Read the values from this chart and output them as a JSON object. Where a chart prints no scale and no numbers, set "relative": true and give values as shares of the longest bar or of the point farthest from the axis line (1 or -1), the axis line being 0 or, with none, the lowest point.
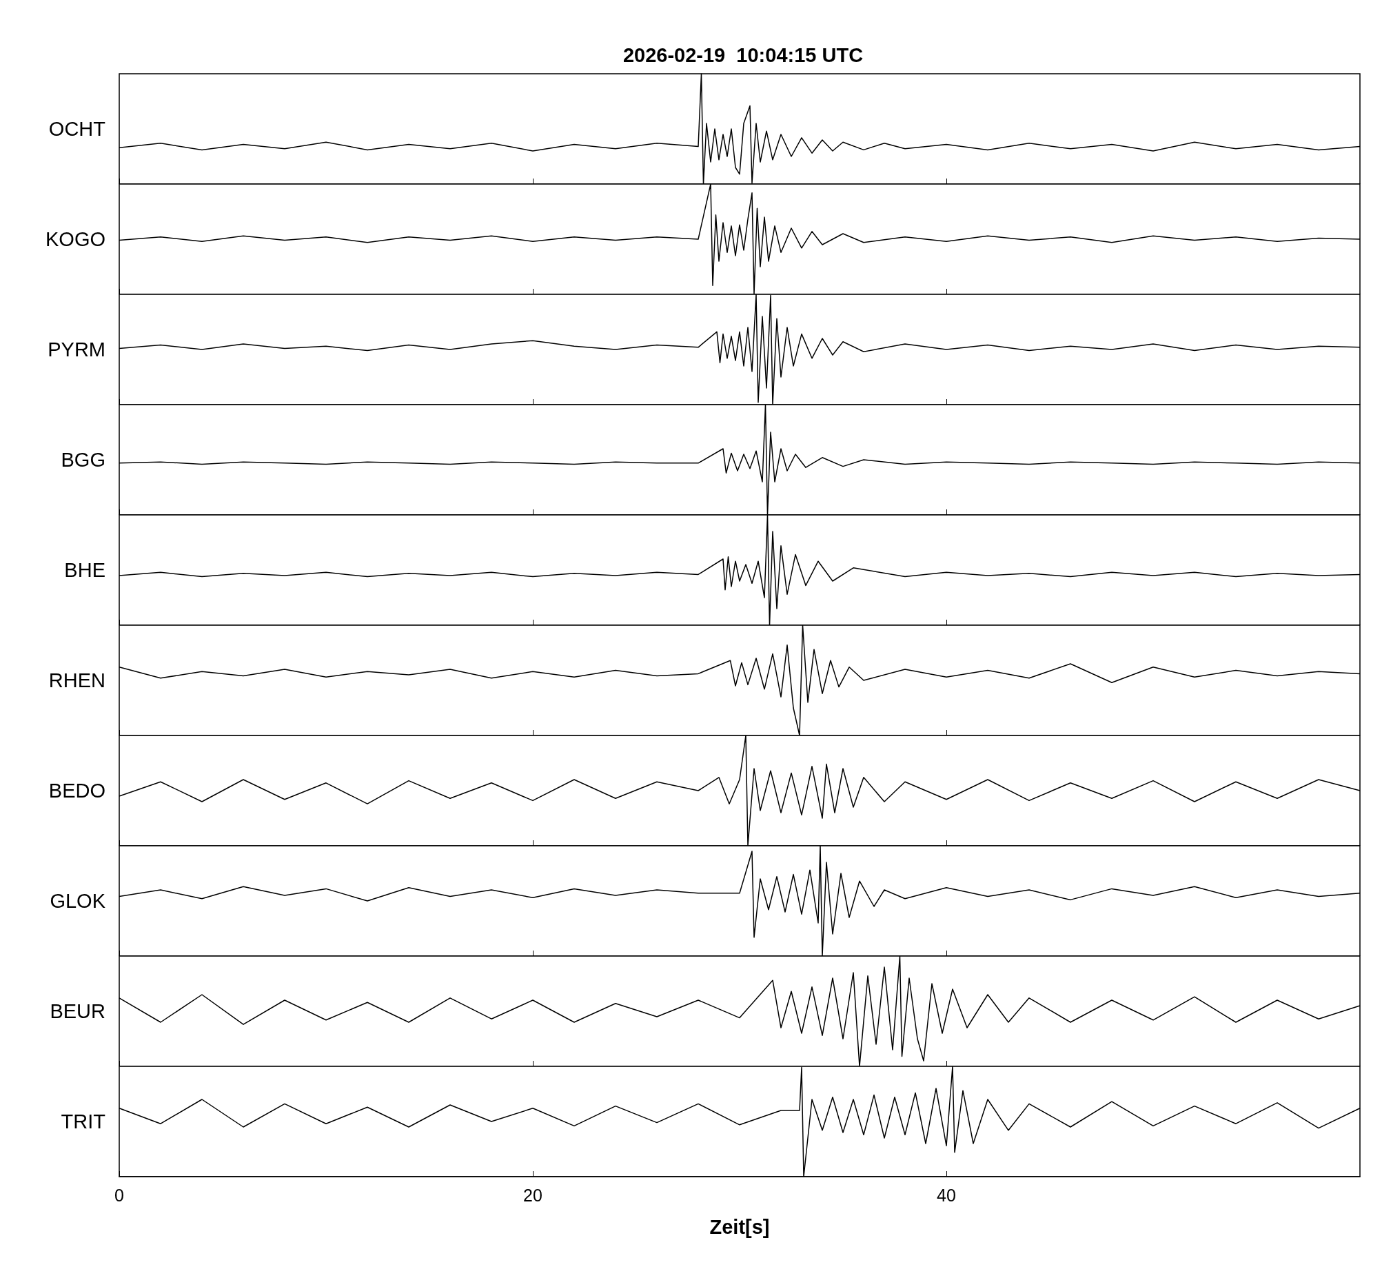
{
  "chart_data": [
    {
      "type": "line",
      "relative": true,
      "title": "2026-02-19  10:04:15 UTC",
      "ylabel": "OCHT",
      "color": "#000000",
      "marker": "none",
      "tick_labels": false,
      "xlim": [
        0,
        60
      ],
      "xticks": [
        0,
        20,
        40
      ],
      "x": [
        0,
        2,
        4,
        6,
        8,
        10,
        12,
        14,
        16,
        18,
        20,
        22,
        24,
        26,
        28,
        28.15,
        28.25,
        28.4,
        28.6,
        28.8,
        29,
        29.2,
        29.4,
        29.6,
        29.8,
        30,
        30.2,
        30.5,
        30.6,
        30.8,
        31,
        31.3,
        31.6,
        32,
        32.5,
        33,
        33.5,
        34,
        34.5,
        35,
        36,
        37,
        38,
        40,
        42,
        44,
        46,
        48,
        50,
        52,
        54,
        56,
        58,
        60
      ],
      "values": [
        0.33,
        0.37,
        0.31,
        0.36,
        0.32,
        0.38,
        0.31,
        0.36,
        0.32,
        0.37,
        0.3,
        0.36,
        0.32,
        0.37,
        0.34,
        1.0,
        0.0,
        0.55,
        0.2,
        0.5,
        0.22,
        0.45,
        0.25,
        0.5,
        0.15,
        0.09,
        0.55,
        0.71,
        0.01,
        0.55,
        0.2,
        0.48,
        0.22,
        0.45,
        0.25,
        0.42,
        0.28,
        0.4,
        0.3,
        0.38,
        0.31,
        0.37,
        0.32,
        0.36,
        0.31,
        0.37,
        0.32,
        0.36,
        0.3,
        0.38,
        0.32,
        0.36,
        0.31,
        0.34
      ]
    },
    {
      "type": "line",
      "relative": true,
      "ylabel": "KOGO",
      "color": "#000000",
      "marker": "none",
      "tick_labels": false,
      "xlim": [
        0,
        60
      ],
      "xticks": [
        0,
        20,
        40
      ],
      "x": [
        0,
        2,
        4,
        6,
        8,
        10,
        12,
        14,
        16,
        18,
        20,
        22,
        24,
        26,
        28,
        28.6,
        28.7,
        28.85,
        29,
        29.2,
        29.4,
        29.6,
        29.8,
        30,
        30.2,
        30.4,
        30.6,
        30.7,
        30.85,
        31,
        31.2,
        31.4,
        31.7,
        32,
        32.5,
        33,
        33.5,
        34,
        35,
        36,
        38,
        40,
        42,
        44,
        46,
        48,
        50,
        52,
        54,
        56,
        58,
        60
      ],
      "values": [
        0.49,
        0.52,
        0.48,
        0.53,
        0.49,
        0.52,
        0.47,
        0.52,
        0.49,
        0.53,
        0.48,
        0.52,
        0.49,
        0.52,
        0.5,
        1.0,
        0.08,
        0.72,
        0.3,
        0.65,
        0.38,
        0.62,
        0.35,
        0.63,
        0.4,
        0.68,
        0.92,
        0.0,
        0.78,
        0.25,
        0.7,
        0.3,
        0.62,
        0.38,
        0.6,
        0.42,
        0.57,
        0.45,
        0.55,
        0.47,
        0.52,
        0.48,
        0.53,
        0.49,
        0.52,
        0.47,
        0.53,
        0.49,
        0.52,
        0.48,
        0.51,
        0.5
      ]
    },
    {
      "type": "line",
      "relative": true,
      "ylabel": "PYRM",
      "color": "#000000",
      "marker": "none",
      "tick_labels": false,
      "xlim": [
        0,
        60
      ],
      "xticks": [
        0,
        20,
        40
      ],
      "x": [
        0,
        2,
        4,
        6,
        8,
        10,
        12,
        14,
        16,
        18,
        20,
        22,
        24,
        26,
        28,
        28.9,
        29.05,
        29.2,
        29.4,
        29.6,
        29.8,
        30,
        30.2,
        30.4,
        30.6,
        30.8,
        30.9,
        31.1,
        31.3,
        31.5,
        31.6,
        31.8,
        32,
        32.3,
        32.6,
        33,
        33.5,
        34,
        34.5,
        35,
        36,
        38,
        40,
        42,
        44,
        46,
        48,
        50,
        52,
        54,
        56,
        58,
        60
      ],
      "values": [
        0.51,
        0.54,
        0.5,
        0.55,
        0.51,
        0.53,
        0.49,
        0.54,
        0.5,
        0.55,
        0.58,
        0.53,
        0.5,
        0.54,
        0.52,
        0.66,
        0.38,
        0.64,
        0.42,
        0.62,
        0.4,
        0.66,
        0.35,
        0.7,
        0.3,
        1.0,
        0.02,
        0.8,
        0.15,
        0.99,
        0.0,
        0.78,
        0.25,
        0.7,
        0.35,
        0.64,
        0.42,
        0.6,
        0.45,
        0.57,
        0.48,
        0.55,
        0.5,
        0.54,
        0.49,
        0.53,
        0.5,
        0.55,
        0.49,
        0.54,
        0.5,
        0.53,
        0.52
      ]
    },
    {
      "type": "line",
      "relative": true,
      "ylabel": "BGG",
      "color": "#000000",
      "marker": "none",
      "tick_labels": false,
      "xlim": [
        0,
        60
      ],
      "xticks": [
        0,
        20,
        40
      ],
      "x": [
        0,
        2,
        4,
        6,
        8,
        10,
        12,
        14,
        16,
        18,
        20,
        22,
        24,
        26,
        28,
        29.2,
        29.35,
        29.6,
        29.9,
        30.2,
        30.5,
        30.8,
        31.1,
        31.25,
        31.35,
        31.5,
        31.7,
        32,
        32.3,
        32.7,
        33.2,
        34,
        35,
        36,
        38,
        40,
        42,
        44,
        46,
        48,
        50,
        52,
        54,
        56,
        58,
        60
      ],
      "values": [
        0.47,
        0.48,
        0.46,
        0.48,
        0.47,
        0.46,
        0.48,
        0.47,
        0.46,
        0.48,
        0.47,
        0.46,
        0.48,
        0.47,
        0.47,
        0.6,
        0.38,
        0.56,
        0.4,
        0.55,
        0.42,
        0.58,
        0.3,
        1.0,
        0.0,
        0.75,
        0.3,
        0.6,
        0.4,
        0.55,
        0.43,
        0.52,
        0.44,
        0.5,
        0.46,
        0.48,
        0.47,
        0.46,
        0.48,
        0.47,
        0.46,
        0.48,
        0.47,
        0.46,
        0.48,
        0.47
      ]
    },
    {
      "type": "line",
      "relative": true,
      "ylabel": "BHE",
      "color": "#000000",
      "marker": "none",
      "tick_labels": false,
      "xlim": [
        0,
        60
      ],
      "xticks": [
        0,
        20,
        40
      ],
      "x": [
        0,
        2,
        4,
        6,
        8,
        10,
        12,
        14,
        16,
        18,
        20,
        22,
        24,
        26,
        28,
        29.2,
        29.3,
        29.45,
        29.6,
        29.8,
        30,
        30.3,
        30.6,
        30.9,
        31.2,
        31.35,
        31.45,
        31.6,
        31.8,
        32,
        32.3,
        32.7,
        33.2,
        33.8,
        34.5,
        35.5,
        38,
        40,
        42,
        44,
        46,
        48,
        50,
        52,
        54,
        56,
        58,
        60
      ],
      "values": [
        0.45,
        0.48,
        0.44,
        0.47,
        0.45,
        0.48,
        0.44,
        0.47,
        0.45,
        0.48,
        0.44,
        0.47,
        0.45,
        0.48,
        0.46,
        0.6,
        0.32,
        0.62,
        0.35,
        0.58,
        0.4,
        0.55,
        0.38,
        0.58,
        0.25,
        1.0,
        0.0,
        0.85,
        0.15,
        0.72,
        0.28,
        0.64,
        0.36,
        0.58,
        0.4,
        0.52,
        0.44,
        0.48,
        0.45,
        0.47,
        0.44,
        0.48,
        0.45,
        0.48,
        0.44,
        0.47,
        0.45,
        0.46
      ]
    },
    {
      "type": "line",
      "relative": true,
      "ylabel": "RHEN",
      "color": "#000000",
      "marker": "none",
      "tick_labels": false,
      "xlim": [
        0,
        60
      ],
      "xticks": [
        0,
        20,
        40
      ],
      "x": [
        0,
        2,
        4,
        6,
        8,
        10,
        12,
        14,
        16,
        18,
        20,
        22,
        24,
        26,
        28,
        29.55,
        29.8,
        30.1,
        30.4,
        30.8,
        31.2,
        31.6,
        32,
        32.3,
        32.6,
        32.9,
        33.05,
        33.3,
        33.6,
        34,
        34.4,
        34.8,
        35.3,
        36,
        38,
        40,
        42,
        44,
        46,
        48,
        50,
        52,
        54,
        56,
        58,
        60
      ],
      "values": [
        0.62,
        0.52,
        0.58,
        0.54,
        0.6,
        0.53,
        0.58,
        0.55,
        0.6,
        0.52,
        0.58,
        0.53,
        0.59,
        0.54,
        0.56,
        0.68,
        0.45,
        0.66,
        0.46,
        0.7,
        0.42,
        0.74,
        0.35,
        0.82,
        0.25,
        0.0,
        1.0,
        0.3,
        0.78,
        0.38,
        0.68,
        0.44,
        0.62,
        0.5,
        0.6,
        0.53,
        0.59,
        0.52,
        0.65,
        0.48,
        0.62,
        0.53,
        0.59,
        0.54,
        0.58,
        0.56
      ]
    },
    {
      "type": "line",
      "relative": true,
      "ylabel": "BEDO",
      "color": "#000000",
      "marker": "none",
      "tick_labels": false,
      "xlim": [
        0,
        60
      ],
      "xticks": [
        0,
        20,
        40
      ],
      "x": [
        0,
        2,
        4,
        6,
        8,
        10,
        12,
        14,
        16,
        18,
        20,
        22,
        24,
        26,
        28,
        29,
        29.5,
        30,
        30.3,
        30.4,
        30.7,
        31,
        31.5,
        32,
        32.5,
        33,
        33.5,
        34,
        34.2,
        34.6,
        35,
        35.5,
        36,
        37,
        38,
        40,
        42,
        44,
        46,
        48,
        50,
        52,
        54,
        56,
        58,
        60
      ],
      "values": [
        0.45,
        0.58,
        0.4,
        0.6,
        0.42,
        0.57,
        0.38,
        0.59,
        0.43,
        0.57,
        0.41,
        0.6,
        0.43,
        0.58,
        0.5,
        0.62,
        0.38,
        0.6,
        1.0,
        0.0,
        0.7,
        0.32,
        0.68,
        0.3,
        0.66,
        0.28,
        0.72,
        0.25,
        0.74,
        0.3,
        0.7,
        0.35,
        0.62,
        0.4,
        0.58,
        0.42,
        0.6,
        0.41,
        0.57,
        0.43,
        0.59,
        0.4,
        0.58,
        0.43,
        0.6,
        0.5
      ]
    },
    {
      "type": "line",
      "relative": true,
      "ylabel": "GLOK",
      "color": "#000000",
      "marker": "none",
      "tick_labels": false,
      "xlim": [
        0,
        60
      ],
      "xticks": [
        0,
        20,
        40
      ],
      "x": [
        0,
        2,
        4,
        6,
        8,
        10,
        12,
        14,
        16,
        18,
        20,
        22,
        24,
        26,
        28,
        30,
        30.6,
        30.7,
        31,
        31.4,
        31.8,
        32.2,
        32.6,
        33,
        33.4,
        33.8,
        33.9,
        34,
        34.2,
        34.5,
        34.9,
        35.3,
        35.8,
        36.5,
        37,
        38,
        40,
        42,
        44,
        46,
        48,
        50,
        52,
        54,
        56,
        58,
        60
      ],
      "values": [
        0.54,
        0.6,
        0.52,
        0.63,
        0.55,
        0.61,
        0.5,
        0.62,
        0.54,
        0.6,
        0.53,
        0.61,
        0.55,
        0.6,
        0.57,
        0.57,
        0.95,
        0.17,
        0.7,
        0.42,
        0.72,
        0.4,
        0.74,
        0.38,
        0.78,
        0.3,
        1.0,
        0.0,
        0.85,
        0.2,
        0.75,
        0.35,
        0.68,
        0.45,
        0.6,
        0.52,
        0.62,
        0.54,
        0.6,
        0.51,
        0.61,
        0.55,
        0.63,
        0.53,
        0.6,
        0.54,
        0.57
      ]
    },
    {
      "type": "line",
      "relative": true,
      "ylabel": "BEUR",
      "color": "#000000",
      "marker": "none",
      "tick_labels": false,
      "xlim": [
        0,
        60
      ],
      "xticks": [
        0,
        20,
        40
      ],
      "x": [
        0,
        2,
        4,
        6,
        8,
        10,
        12,
        14,
        16,
        18,
        20,
        22,
        24,
        26,
        28,
        30,
        31.6,
        32,
        32.5,
        33,
        33.5,
        34,
        34.5,
        35,
        35.5,
        35.8,
        36.2,
        36.6,
        37,
        37.4,
        37.75,
        37.85,
        38.2,
        38.6,
        38.9,
        39.3,
        39.8,
        40.3,
        41,
        42,
        43,
        44,
        46,
        48,
        50,
        52,
        54,
        56,
        58,
        60
      ],
      "values": [
        0.62,
        0.4,
        0.65,
        0.38,
        0.6,
        0.42,
        0.58,
        0.4,
        0.62,
        0.43,
        0.6,
        0.4,
        0.57,
        0.45,
        0.6,
        0.44,
        0.78,
        0.35,
        0.68,
        0.3,
        0.72,
        0.28,
        0.8,
        0.25,
        0.85,
        0.0,
        0.82,
        0.2,
        0.9,
        0.15,
        1.0,
        0.09,
        0.8,
        0.25,
        0.05,
        0.75,
        0.3,
        0.7,
        0.35,
        0.65,
        0.4,
        0.62,
        0.4,
        0.6,
        0.42,
        0.63,
        0.4,
        0.6,
        0.43,
        0.55
      ]
    },
    {
      "type": "line",
      "relative": true,
      "ylabel": "TRIT",
      "xlabel": "Zeit[s]",
      "color": "#000000",
      "marker": "none",
      "tick_labels": "x",
      "xlim": [
        0,
        60
      ],
      "xticks": [
        0,
        20,
        40
      ],
      "x": [
        0,
        2,
        4,
        6,
        8,
        10,
        12,
        14,
        16,
        18,
        20,
        22,
        24,
        26,
        28,
        30,
        32,
        32.9,
        33.0,
        33.1,
        33.5,
        34,
        34.5,
        35,
        35.5,
        36,
        36.5,
        37,
        37.5,
        38,
        38.5,
        39,
        39.5,
        40,
        40.3,
        40.4,
        40.8,
        41.3,
        42,
        43,
        44,
        46,
        48,
        50,
        52,
        54,
        56,
        58,
        60
      ],
      "values": [
        0.62,
        0.48,
        0.7,
        0.45,
        0.66,
        0.48,
        0.63,
        0.45,
        0.65,
        0.5,
        0.62,
        0.46,
        0.64,
        0.49,
        0.66,
        0.47,
        0.6,
        0.6,
        0.99,
        0.0,
        0.7,
        0.42,
        0.72,
        0.4,
        0.7,
        0.38,
        0.74,
        0.35,
        0.72,
        0.38,
        0.76,
        0.3,
        0.8,
        0.28,
        1.0,
        0.22,
        0.78,
        0.3,
        0.7,
        0.42,
        0.66,
        0.45,
        0.68,
        0.46,
        0.64,
        0.48,
        0.67,
        0.44,
        0.62
      ]
    }
  ]
}
